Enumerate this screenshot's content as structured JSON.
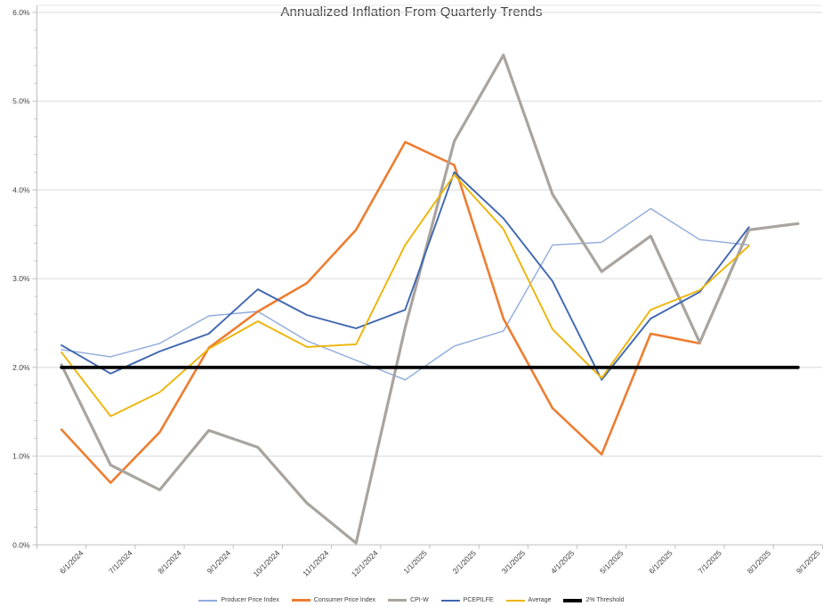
{
  "chart": {
    "title": "Annualized Inflation From Quarterly Trends"
  },
  "chart_data": {
    "type": "line",
    "title": "Annualized Inflation From Quarterly Trends",
    "categories": [
      "6/1/2024",
      "7/1/2024",
      "8/1/2024",
      "9/1/2024",
      "10/1/2024",
      "11/1/2024",
      "12/1/2024",
      "1/1/2025",
      "2/1/2025",
      "3/1/2025",
      "4/1/2025",
      "5/1/2025",
      "6/1/2025",
      "7/1/2025",
      "8/1/2025",
      "9/1/2025"
    ],
    "series": [
      {
        "name": "Producer Price Index",
        "color": "#8FAADC",
        "stroke_width": 1.4,
        "values": [
          2.2,
          2.12,
          2.27,
          2.58,
          2.63,
          2.3,
          2.08,
          1.86,
          2.24,
          2.41,
          3.38,
          3.41,
          3.79,
          3.44,
          3.38,
          null
        ]
      },
      {
        "name": "Consumer Price Index",
        "color": "#ED7D31",
        "stroke_width": 2.6,
        "values": [
          1.3,
          0.7,
          1.27,
          2.22,
          2.63,
          2.95,
          3.55,
          4.54,
          4.28,
          2.55,
          1.54,
          1.02,
          2.38,
          2.27,
          null,
          null
        ]
      },
      {
        "name": "CPI-W",
        "color": "#A9A49E",
        "stroke_width": 3.2,
        "values": [
          2.03,
          0.9,
          0.62,
          1.29,
          1.1,
          0.47,
          0.02,
          2.45,
          4.55,
          5.52,
          3.95,
          3.08,
          3.48,
          2.28,
          3.55,
          3.62
        ]
      },
      {
        "name": "PCEPILFE",
        "color": "#3F66B0",
        "stroke_width": 1.9,
        "values": [
          2.25,
          1.93,
          2.18,
          2.38,
          2.88,
          2.59,
          2.44,
          2.65,
          4.2,
          3.68,
          2.97,
          1.86,
          2.55,
          2.85,
          3.58,
          null
        ]
      },
      {
        "name": "Average",
        "color": "#EDB406",
        "stroke_width": 1.9,
        "values": [
          2.17,
          1.45,
          1.72,
          2.21,
          2.52,
          2.23,
          2.26,
          3.38,
          4.17,
          3.56,
          2.43,
          1.88,
          2.65,
          2.87,
          3.37,
          null
        ]
      },
      {
        "name": "2% Threshold",
        "color": "#000000",
        "stroke_width": 3.7,
        "values": [
          2.0,
          2.0,
          2.0,
          2.0,
          2.0,
          2.0,
          2.0,
          2.0,
          2.0,
          2.0,
          2.0,
          2.0,
          2.0,
          2.0,
          2.0,
          2.0
        ]
      }
    ],
    "y_axis": {
      "min": 0,
      "max": 6,
      "major_step": 1,
      "minor_step": 0.2,
      "labels": [
        "0.0%",
        "1.0%",
        "2.0%",
        "3.0%",
        "4.0%",
        "5.0%",
        "6.0%"
      ]
    },
    "x_axis": {
      "label_rotation_deg": -45
    },
    "grid": "horizontal-major",
    "legend_position": "bottom",
    "colors": {
      "gridline": "#D9D9D9",
      "axis": "#BFBFBF",
      "tick_label": "#404040",
      "title": "#404040"
    }
  }
}
